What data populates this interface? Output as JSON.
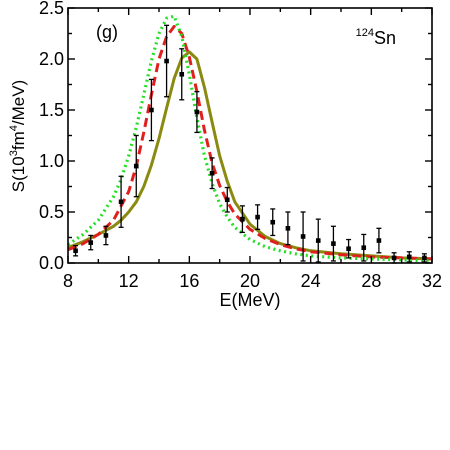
{
  "chart_data": {
    "type": "line",
    "panel_label": "(g)",
    "nucleus_mass": "124",
    "nucleus_symbol": "Sn",
    "xlabel": "E(MeV)",
    "ylabel_parts": [
      "S(10",
      "3",
      "fm",
      "4",
      "/MeV)"
    ],
    "xlim": [
      8,
      32
    ],
    "ylim": [
      0,
      2.5
    ],
    "x_ticks": [
      8,
      12,
      16,
      20,
      24,
      28,
      32
    ],
    "x_tick_labels": [
      "8",
      "12",
      "16",
      "20",
      "24",
      "28",
      "32"
    ],
    "y_ticks": [
      0,
      0.5,
      1.0,
      1.5,
      2.0,
      2.5
    ],
    "y_tick_labels": [
      "0.0",
      "0.5",
      "1.0",
      "1.5",
      "2.0",
      "2.5"
    ],
    "legend": "none",
    "grid": false,
    "experimental": [
      {
        "x": 8.5,
        "y": 0.12,
        "err": 0.05
      },
      {
        "x": 9.5,
        "y": 0.2,
        "err": 0.07
      },
      {
        "x": 10.5,
        "y": 0.27,
        "err": 0.09
      },
      {
        "x": 11.5,
        "y": 0.6,
        "err": 0.25
      },
      {
        "x": 12.5,
        "y": 0.95,
        "err": 0.3
      },
      {
        "x": 13.5,
        "y": 1.5,
        "err": 0.3
      },
      {
        "x": 14.5,
        "y": 1.98,
        "err": 0.35
      },
      {
        "x": 15.5,
        "y": 1.85,
        "err": 0.25
      },
      {
        "x": 16.5,
        "y": 1.48,
        "err": 0.2
      },
      {
        "x": 17.5,
        "y": 0.88,
        "err": 0.15
      },
      {
        "x": 18.5,
        "y": 0.62,
        "err": 0.12
      },
      {
        "x": 19.5,
        "y": 0.43,
        "err": 0.13
      },
      {
        "x": 20.5,
        "y": 0.45,
        "err": 0.12
      },
      {
        "x": 21.5,
        "y": 0.4,
        "err": 0.13
      },
      {
        "x": 22.5,
        "y": 0.34,
        "err": 0.16
      },
      {
        "x": 23.5,
        "y": 0.26,
        "err": 0.24
      },
      {
        "x": 24.5,
        "y": 0.22,
        "err": 0.21
      },
      {
        "x": 25.5,
        "y": 0.19,
        "err": 0.17
      },
      {
        "x": 26.5,
        "y": 0.14,
        "err": 0.09
      },
      {
        "x": 27.5,
        "y": 0.15,
        "err": 0.13
      },
      {
        "x": 28.5,
        "y": 0.22,
        "err": 0.12
      },
      {
        "x": 29.5,
        "y": 0.05,
        "err": 0.05
      },
      {
        "x": 30.5,
        "y": 0.06,
        "err": 0.05
      },
      {
        "x": 31.5,
        "y": 0.05,
        "err": 0.04
      }
    ],
    "series": [
      {
        "style": "solid",
        "color": "#8a8a10",
        "x": [
          8,
          9,
          10,
          11,
          11.5,
          12,
          12.5,
          13,
          13.5,
          14,
          14.5,
          15,
          15.5,
          16,
          16.5,
          17,
          17.5,
          18,
          18.5,
          19,
          20,
          21,
          22,
          23,
          24,
          26,
          28,
          30,
          32
        ],
        "y": [
          0.15,
          0.21,
          0.28,
          0.36,
          0.42,
          0.5,
          0.6,
          0.75,
          0.96,
          1.22,
          1.52,
          1.81,
          2.01,
          2.07,
          2.0,
          1.72,
          1.38,
          1.05,
          0.8,
          0.6,
          0.38,
          0.26,
          0.19,
          0.15,
          0.12,
          0.09,
          0.07,
          0.05,
          0.04
        ]
      },
      {
        "style": "dashed",
        "color": "#e0201e",
        "x": [
          8,
          9,
          10,
          11,
          12,
          12.5,
          13,
          13.5,
          14,
          14.5,
          15,
          15.5,
          16,
          16.5,
          17,
          17.5,
          18,
          18.5,
          19,
          20,
          21,
          22,
          23,
          24,
          26,
          28,
          30,
          32
        ],
        "y": [
          0.13,
          0.19,
          0.28,
          0.42,
          0.7,
          0.95,
          1.28,
          1.65,
          2.0,
          2.22,
          2.32,
          2.25,
          2.02,
          1.68,
          1.3,
          0.98,
          0.76,
          0.6,
          0.48,
          0.33,
          0.24,
          0.18,
          0.14,
          0.11,
          0.08,
          0.06,
          0.05,
          0.04
        ]
      },
      {
        "style": "dotted",
        "color": "#22e022",
        "x": [
          8,
          9,
          10,
          11,
          11.5,
          12,
          12.5,
          13,
          13.5,
          14,
          14.5,
          15,
          15.5,
          16,
          16.5,
          17,
          17.5,
          18,
          18.5,
          19,
          20,
          21,
          22,
          23,
          24,
          26,
          28,
          30,
          32
        ],
        "y": [
          0.18,
          0.28,
          0.42,
          0.65,
          0.82,
          1.05,
          1.33,
          1.65,
          1.98,
          2.25,
          2.4,
          2.42,
          2.22,
          1.85,
          1.42,
          1.05,
          0.78,
          0.58,
          0.45,
          0.35,
          0.23,
          0.16,
          0.12,
          0.09,
          0.07,
          0.05,
          0.04,
          0.03,
          0.02
        ]
      }
    ]
  }
}
